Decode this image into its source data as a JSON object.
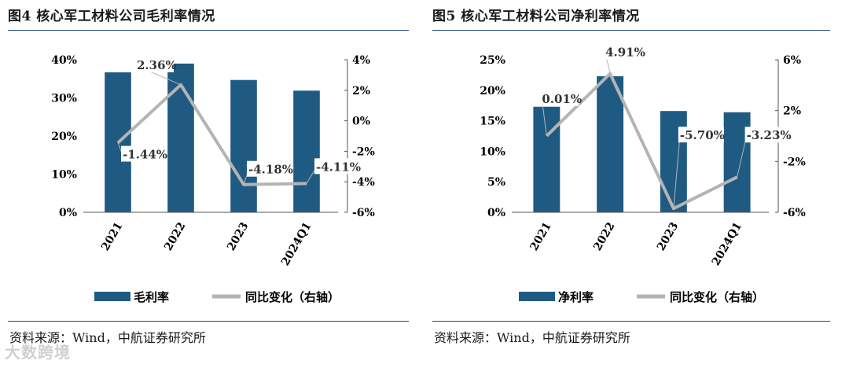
{
  "source_text": "资料来源：Wind，中航证券研究所",
  "watermark": "大数跨境",
  "colors": {
    "bar": "#1f5a82",
    "line": "#b4b4b4",
    "rule": "#1f4e79"
  },
  "chart_data": [
    {
      "type": "bar",
      "title": "图4  核心军工材料公司毛利率情况",
      "categories": [
        "2021",
        "2022",
        "2023",
        "2024Q1"
      ],
      "series": [
        {
          "name": "毛利率",
          "kind": "bar",
          "axis": "left",
          "values": [
            36.7,
            39.0,
            34.7,
            31.9
          ]
        },
        {
          "name": "同比变化（右轴）",
          "kind": "line",
          "axis": "right",
          "values": [
            -1.44,
            2.36,
            -4.18,
            -4.11
          ]
        }
      ],
      "data_labels": [
        "-1.44%",
        "2.36%",
        "-4.18%",
        "-4.11%"
      ],
      "y_left": {
        "min": 0,
        "max": 40,
        "ticks": [
          "0%",
          "10%",
          "20%",
          "30%",
          "40%"
        ]
      },
      "y_right": {
        "min": -6,
        "max": 4,
        "ticks": [
          "-6%",
          "-4%",
          "-2%",
          "0%",
          "2%",
          "4%"
        ]
      },
      "legend_position": "bottom"
    },
    {
      "type": "bar",
      "title": "图5  核心军工材料公司净利率情况",
      "categories": [
        "2021",
        "2022",
        "2023",
        "2024Q1"
      ],
      "series": [
        {
          "name": "净利率",
          "kind": "bar",
          "axis": "left",
          "values": [
            17.3,
            22.3,
            16.6,
            16.4
          ]
        },
        {
          "name": "同比变化（右轴）",
          "kind": "line",
          "axis": "right",
          "values": [
            0.01,
            4.91,
            -5.7,
            -3.23
          ]
        }
      ],
      "data_labels": [
        "0.01%",
        "4.91%",
        "-5.70%",
        "-3.23%"
      ],
      "y_left": {
        "min": 0,
        "max": 25,
        "ticks": [
          "0%",
          "5%",
          "10%",
          "15%",
          "20%",
          "25%"
        ]
      },
      "y_right": {
        "min": -6,
        "max": 6,
        "ticks": [
          "-6%",
          "-2%",
          "2%",
          "6%"
        ]
      },
      "legend_position": "bottom"
    }
  ]
}
